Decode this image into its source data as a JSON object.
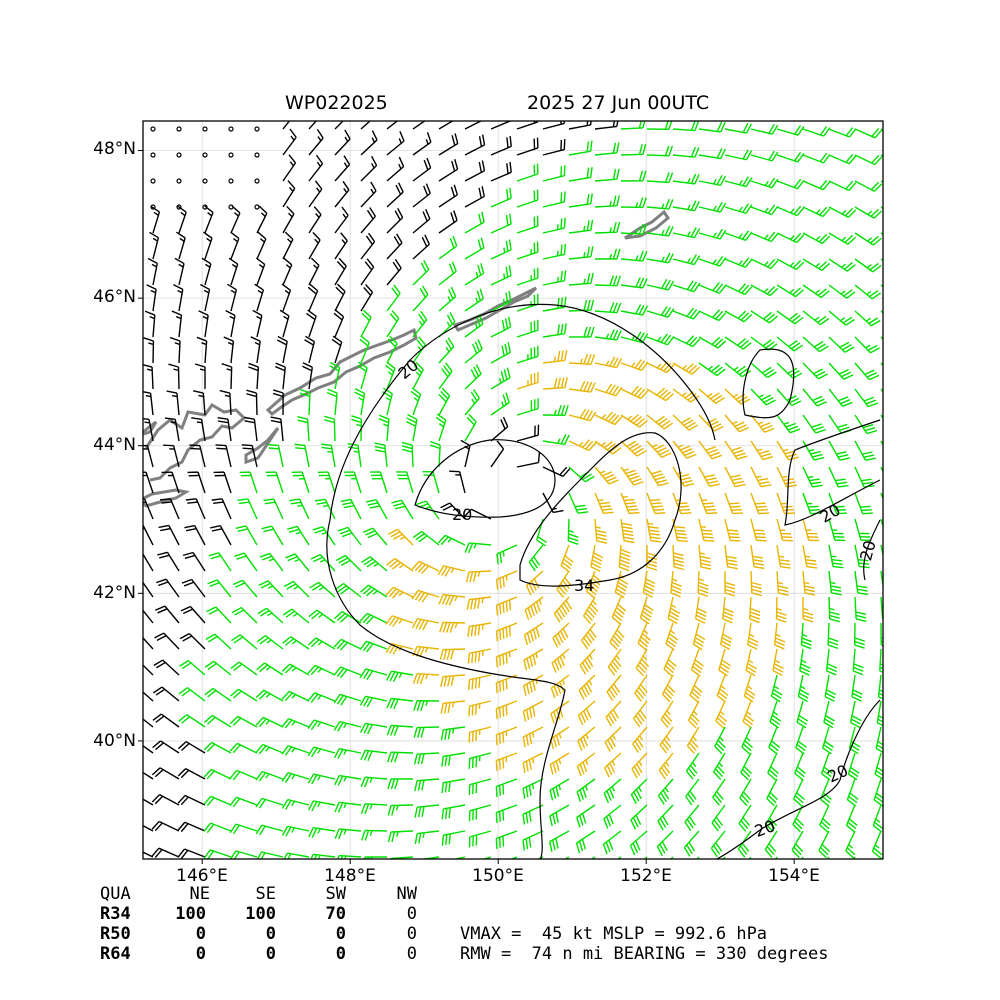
{
  "title": {
    "storm_id": "WP022025",
    "datetime": "2025 27 Jun 00UTC"
  },
  "axes": {
    "lat_ticks": [
      "40°N",
      "42°N",
      "44°N",
      "46°N",
      "48°N"
    ],
    "lon_ticks": [
      "146°E",
      "148°E",
      "150°E",
      "152°E",
      "154°E"
    ],
    "lat_range": [
      38.4,
      48.4
    ],
    "lon_range": [
      145.2,
      155.2
    ],
    "grid": true
  },
  "contour_labels": [
    "20",
    "20",
    "20",
    "20",
    "20",
    "20",
    "34"
  ],
  "wind_radii": {
    "headers": [
      "QUA",
      "NE",
      "SE",
      "SW",
      "NW"
    ],
    "rows": [
      {
        "label": "R34",
        "values": [
          "100",
          "100",
          "70",
          "0"
        ]
      },
      {
        "label": "R50",
        "values": [
          "0",
          "0",
          "0",
          "0"
        ]
      },
      {
        "label": "R64",
        "values": [
          "0",
          "0",
          "0",
          "0"
        ]
      }
    ]
  },
  "summary": {
    "line1": "VMAX =  45 kt MSLP = 992.6 hPa",
    "line2": "RMW =  74 n mi BEARING = 330 degrees"
  },
  "center": {
    "lat": 43.3,
    "lon": 150.2
  },
  "colors": {
    "strong": "#00e000",
    "gale_core": "#e8b400",
    "coast": "#808080",
    "barb": "#000000"
  }
}
